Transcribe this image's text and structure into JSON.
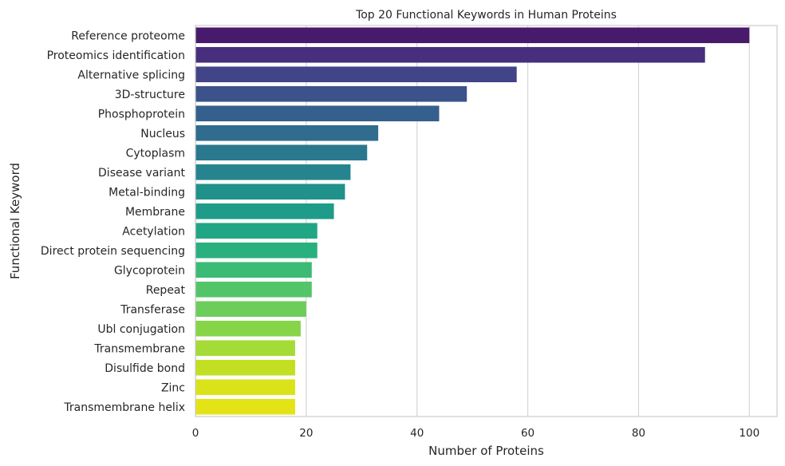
{
  "chart_data": {
    "type": "bar",
    "orientation": "horizontal",
    "title": "Top 20 Functional Keywords in Human Proteins",
    "xlabel": "Number of Proteins",
    "ylabel": "Functional Keyword",
    "xlim": [
      0,
      105
    ],
    "xticks": [
      0,
      20,
      40,
      60,
      80,
      100
    ],
    "grid": true,
    "colormap": "viridis",
    "categories": [
      "Reference proteome",
      "Proteomics identification",
      "Alternative splicing",
      "3D-structure",
      "Phosphoprotein",
      "Nucleus",
      "Cytoplasm",
      "Disease variant",
      "Metal-binding",
      "Membrane",
      "Acetylation",
      "Direct protein sequencing",
      "Glycoprotein",
      "Repeat",
      "Transferase",
      "Ubl conjugation",
      "Transmembrane",
      "Disulfide bond",
      "Zinc",
      "Transmembrane helix"
    ],
    "values": [
      100,
      92,
      58,
      49,
      44,
      33,
      31,
      28,
      27,
      25,
      22,
      22,
      21,
      21,
      20,
      19,
      18,
      18,
      18,
      18
    ],
    "colors": [
      "#481a6c",
      "#472f7d",
      "#414487",
      "#3b528b",
      "#355f8d",
      "#2f6c8e",
      "#2a788e",
      "#25848e",
      "#21918c",
      "#1e9c89",
      "#21a685",
      "#2ab07f",
      "#3bbb75",
      "#52c569",
      "#6ccd5a",
      "#86d549",
      "#a5db36",
      "#c2df23",
      "#dae319",
      "#e3e418"
    ]
  }
}
